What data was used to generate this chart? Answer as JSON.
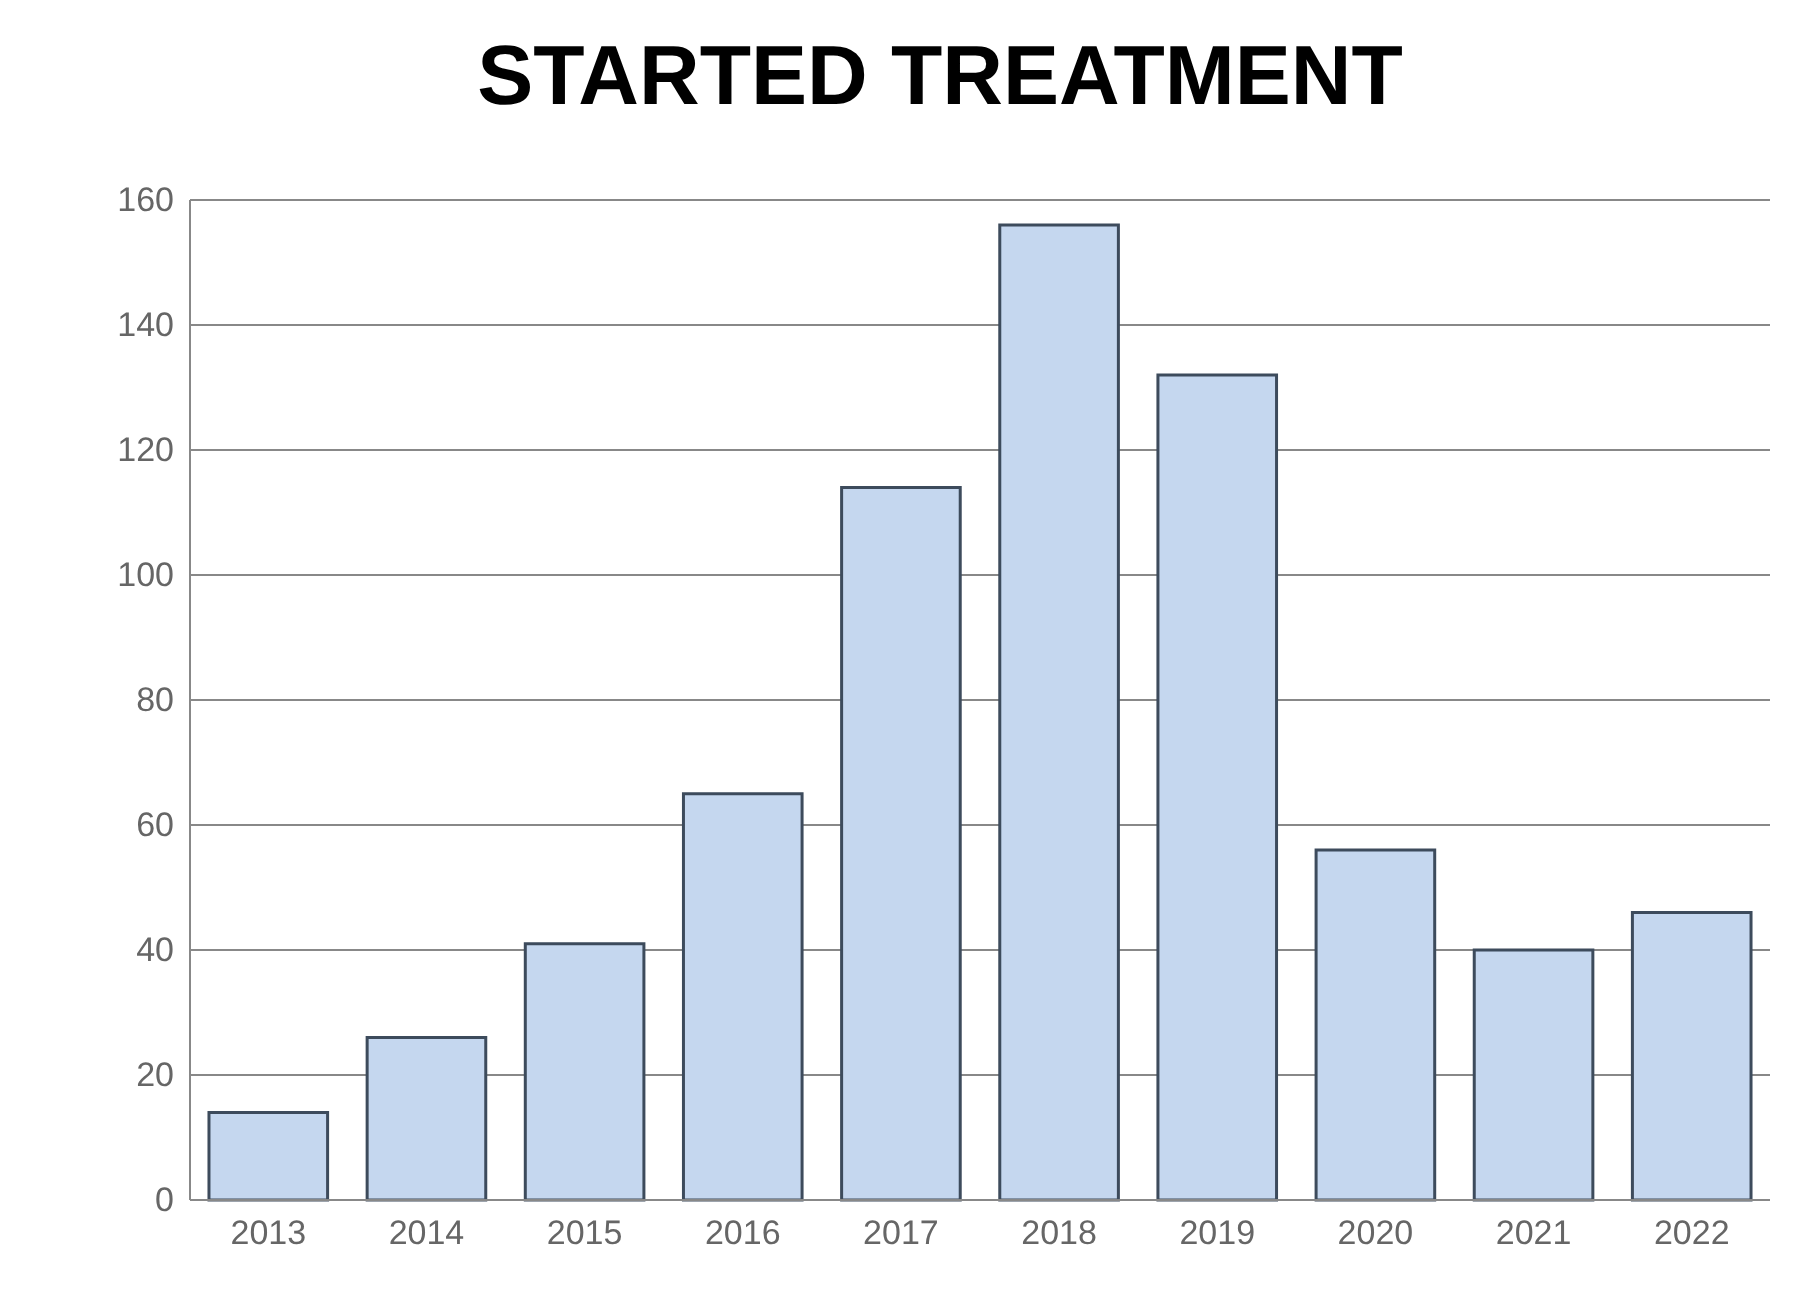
{
  "chart_data": {
    "type": "bar",
    "title": "STARTED TREATMENT",
    "categories": [
      "2013",
      "2014",
      "2015",
      "2016",
      "2017",
      "2018",
      "2019",
      "2020",
      "2021",
      "2022"
    ],
    "values": [
      14,
      26,
      41,
      65,
      114,
      156,
      132,
      56,
      40,
      46
    ],
    "color": "#c5d7ef",
    "ylim": [
      0,
      160
    ],
    "yticks": [
      0,
      20,
      40,
      60,
      80,
      100,
      120,
      140,
      160
    ],
    "grid": "y"
  }
}
